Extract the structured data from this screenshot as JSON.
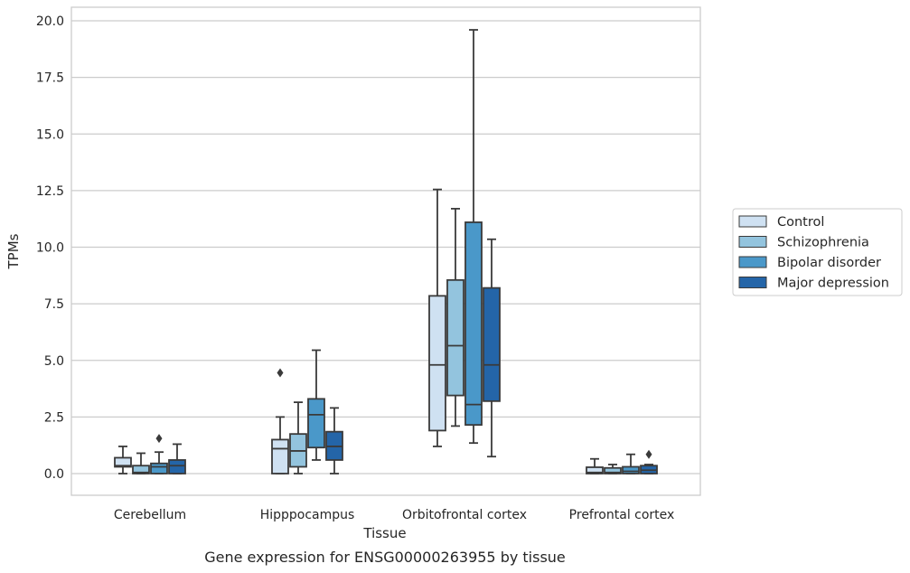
{
  "chart_data": {
    "type": "box",
    "title": "",
    "caption": "Gene expression for ENSG00000263955 by tissue",
    "xlabel": "Tissue",
    "ylabel": "TPMs",
    "ylim": [
      -1.0,
      20.6
    ],
    "yticks": [
      "0.0",
      "2.5",
      "5.0",
      "7.5",
      "10.0",
      "12.5",
      "15.0",
      "17.5",
      "20.0"
    ],
    "ytick_values": [
      0,
      2.5,
      5,
      7.5,
      10,
      12.5,
      15,
      17.5,
      20
    ],
    "grid": "horizontal",
    "legend_position": "right",
    "categories": [
      "Cerebellum",
      "Hipppocampus",
      "Orbitofrontal cortex",
      "Prefrontal cortex"
    ],
    "series": [
      {
        "name": "Control",
        "color": "#cfe1f2",
        "boxes": [
          {
            "whislo": 0.0,
            "q1": 0.3,
            "med": 0.35,
            "q3": 0.7,
            "whishi": 1.2,
            "fliers": []
          },
          {
            "whislo": 0.0,
            "q1": 0.0,
            "med": 1.1,
            "q3": 1.5,
            "whishi": 2.5,
            "fliers": [
              4.45
            ]
          },
          {
            "whislo": 1.2,
            "q1": 1.9,
            "med": 4.8,
            "q3": 7.85,
            "whishi": 12.55,
            "fliers": []
          },
          {
            "whislo": 0.0,
            "q1": 0.0,
            "med": 0.05,
            "q3": 0.28,
            "whishi": 0.65,
            "fliers": []
          }
        ]
      },
      {
        "name": "Schizophrenia",
        "color": "#93c4de",
        "boxes": [
          {
            "whislo": 0.0,
            "q1": 0.0,
            "med": 0.05,
            "q3": 0.35,
            "whishi": 0.9,
            "fliers": []
          },
          {
            "whislo": 0.0,
            "q1": 0.3,
            "med": 1.0,
            "q3": 1.75,
            "whishi": 3.15,
            "fliers": []
          },
          {
            "whislo": 2.1,
            "q1": 3.45,
            "med": 5.65,
            "q3": 8.55,
            "whishi": 11.7,
            "fliers": []
          },
          {
            "whislo": 0.0,
            "q1": 0.0,
            "med": 0.05,
            "q3": 0.25,
            "whishi": 0.4,
            "fliers": []
          }
        ]
      },
      {
        "name": "Bipolar disorder",
        "color": "#4a98c9",
        "boxes": [
          {
            "whislo": 0.0,
            "q1": 0.0,
            "med": 0.3,
            "q3": 0.45,
            "whishi": 0.95,
            "fliers": [
              1.55
            ]
          },
          {
            "whislo": 0.6,
            "q1": 1.15,
            "med": 2.6,
            "q3": 3.3,
            "whishi": 5.45,
            "fliers": []
          },
          {
            "whislo": 1.35,
            "q1": 2.15,
            "med": 3.05,
            "q3": 11.1,
            "whishi": 19.6,
            "fliers": []
          },
          {
            "whislo": 0.0,
            "q1": 0.0,
            "med": 0.1,
            "q3": 0.3,
            "whishi": 0.85,
            "fliers": []
          }
        ]
      },
      {
        "name": "Major depression",
        "color": "#2465a8",
        "boxes": [
          {
            "whislo": 0.0,
            "q1": 0.0,
            "med": 0.35,
            "q3": 0.6,
            "whishi": 1.3,
            "fliers": []
          },
          {
            "whislo": 0.0,
            "q1": 0.6,
            "med": 1.2,
            "q3": 1.85,
            "whishi": 2.9,
            "fliers": []
          },
          {
            "whislo": 0.75,
            "q1": 3.2,
            "med": 4.8,
            "q3": 8.2,
            "whishi": 10.35,
            "fliers": []
          },
          {
            "whislo": 0.0,
            "q1": 0.0,
            "med": 0.15,
            "q3": 0.35,
            "whishi": 0.4,
            "fliers": [
              0.85
            ]
          }
        ]
      }
    ]
  }
}
